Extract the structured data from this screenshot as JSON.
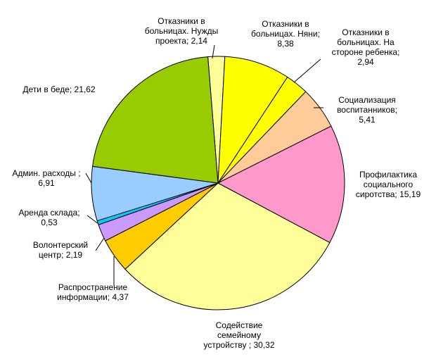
{
  "chart_data": {
    "type": "pie",
    "title": "",
    "slices": [
      {
        "label": "Отказники в больницах. Нужды проекта",
        "value": 2.14,
        "value_label": "2,14",
        "color": "#ffff99",
        "label_lines": [
          "Отказники в",
          "больницах. Нужды",
          "проекта; 2,14"
        ]
      },
      {
        "label": "Отказники в больницах. Няни",
        "value": 8.38,
        "value_label": "8,38",
        "color": "#ffff00",
        "label_lines": [
          "Отказники в",
          "больницах. Няни;",
          "8,38"
        ]
      },
      {
        "label": "Отказники в больницах. На стороне ребенка",
        "value": 2.94,
        "value_label": "2,94",
        "color": "#ffff00",
        "label_lines": [
          "Отказники в",
          "больницах. На",
          "стороне ребенка;",
          "2,94"
        ]
      },
      {
        "label": "Социализация воспитанников",
        "value": 5.41,
        "value_label": "5,41",
        "color": "#ffcc99",
        "label_lines": [
          "Социализация",
          "воспитанников;",
          "5,41"
        ]
      },
      {
        "label": "Профилактика социального сиротства",
        "value": 15.19,
        "value_label": "15,19",
        "color": "#ff99cc",
        "label_lines": [
          "Профилактика",
          "социального",
          "сиротства; 15,19"
        ]
      },
      {
        "label": "Содействие семейному устройству",
        "value": 30.32,
        "value_label": "30,32",
        "color": "#ffff99",
        "label_lines": [
          "Содействие",
          "семейному",
          "устройству ; 30,32"
        ]
      },
      {
        "label": "Распространение информации",
        "value": 4.37,
        "value_label": "4,37",
        "color": "#ffcc00",
        "label_lines": [
          "Распространение",
          "информации; 4,37"
        ]
      },
      {
        "label": "Волонтерский центр",
        "value": 2.19,
        "value_label": "2,19",
        "color": "#cc99ff",
        "label_lines": [
          "Волонтерский",
          "центр; 2,19"
        ]
      },
      {
        "label": "Аренда склада",
        "value": 0.53,
        "value_label": "0,53",
        "color": "#00ccff",
        "label_lines": [
          "Аренда склада;",
          "0,53"
        ]
      },
      {
        "label": "Админ. расходы",
        "value": 6.91,
        "value_label": "6,91",
        "color": "#99ccff",
        "label_lines": [
          "Админ. расходы ;",
          "6,91"
        ]
      },
      {
        "label": "Дети в беде",
        "value": 21.62,
        "value_label": "21,62",
        "color": "#99cc00",
        "label_lines": [
          "Дети в беде; 21,62"
        ]
      }
    ]
  }
}
